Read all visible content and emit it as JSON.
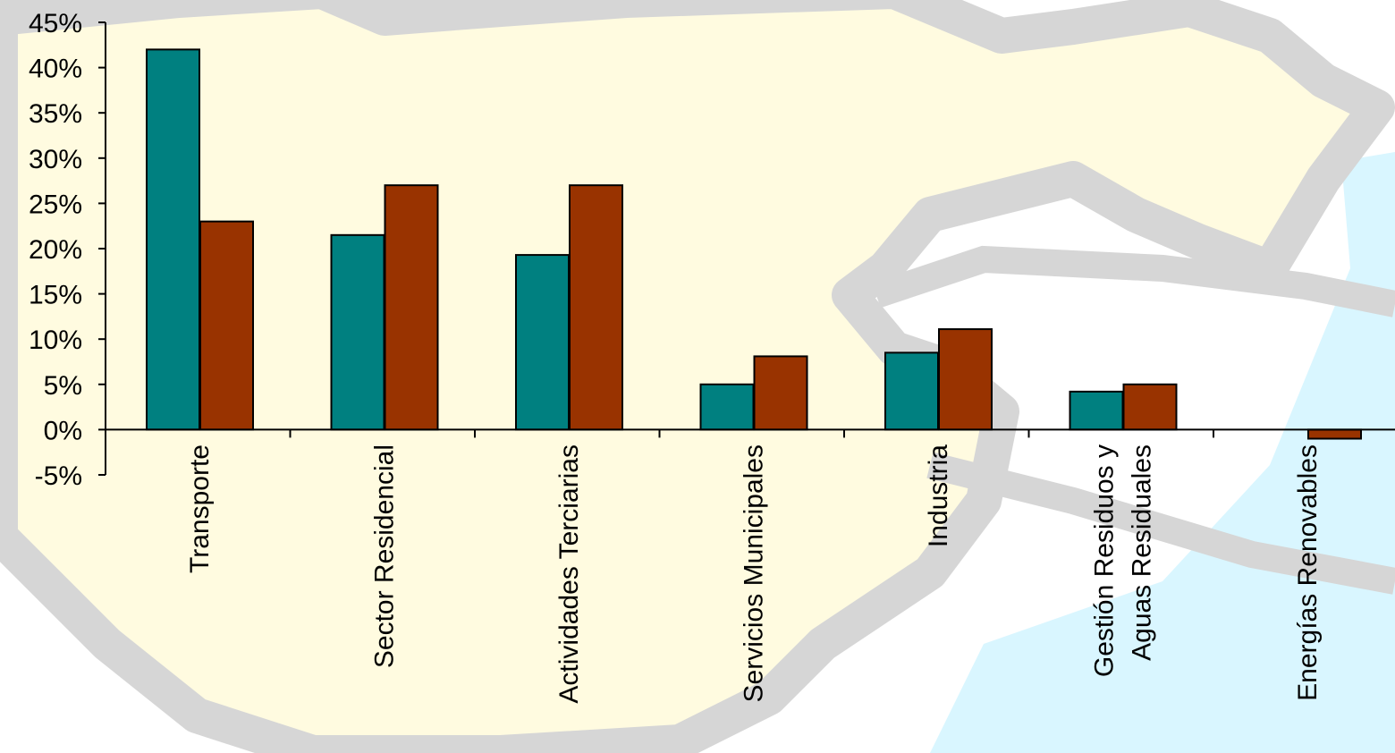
{
  "colors": {
    "series_a": "#008080",
    "series_b": "#993300",
    "background_map_fill": "#fffbe0",
    "background_map_border": "#d6d6d6",
    "background_water": "#d9f6ff"
  },
  "chart_data": {
    "type": "bar",
    "title": "",
    "xlabel": "",
    "ylabel": "",
    "ylim": [
      -5,
      45
    ],
    "yticks": [
      "45%",
      "40%",
      "35%",
      "30%",
      "25%",
      "20%",
      "15%",
      "10%",
      "5%",
      "0%",
      "-5%"
    ],
    "ytick_values": [
      45,
      40,
      35,
      30,
      25,
      20,
      15,
      10,
      5,
      0,
      -5
    ],
    "grid": false,
    "legend": "none",
    "categories": [
      [
        "Transporte"
      ],
      [
        "Sector Residencial"
      ],
      [
        "Actividades Terciarias"
      ],
      [
        "Servicios Municipales"
      ],
      [
        "Industria"
      ],
      [
        "Gestión Residuos y",
        "Aguas Residuales"
      ],
      [
        "Energías Renovables"
      ]
    ],
    "series": [
      {
        "values": [
          42,
          21.5,
          19.3,
          5,
          8.5,
          4.2,
          0
        ]
      },
      {
        "values": [
          23,
          27,
          27,
          8.1,
          11.1,
          5,
          -1
        ]
      }
    ]
  }
}
